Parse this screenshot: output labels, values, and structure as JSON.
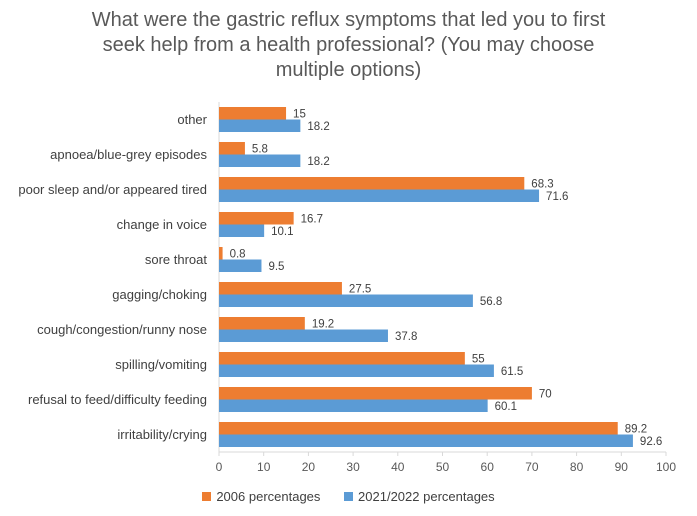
{
  "chart_data": {
    "type": "bar",
    "orientation": "horizontal",
    "title_lines": [
      "What were the gastric reflux symptoms that led you to first",
      "seek help from a health professional? (You may choose",
      "multiple options)"
    ],
    "categories": [
      "other",
      "apnoea/blue-grey episodes",
      "poor sleep and/or appeared tired",
      "change in voice",
      "sore throat",
      "gagging/choking",
      "cough/congestion/runny nose",
      "spilling/vomiting",
      "refusal to feed/difficulty feeding",
      "irritability/crying"
    ],
    "series": [
      {
        "name": "2006 percentages",
        "color": "#ED7D31",
        "values": [
          15,
          5.8,
          68.3,
          16.7,
          0.8,
          27.5,
          19.2,
          55,
          70,
          89.2
        ]
      },
      {
        "name": "2021/2022 percentages",
        "color": "#5B9BD5",
        "values": [
          18.2,
          18.2,
          71.6,
          10.1,
          9.5,
          56.8,
          37.8,
          61.5,
          60.1,
          92.6
        ]
      }
    ],
    "xlim": [
      0,
      100
    ],
    "xticks": [
      0,
      10,
      20,
      30,
      40,
      50,
      60,
      70,
      80,
      90,
      100
    ],
    "grid": false,
    "legend_position": "bottom"
  }
}
